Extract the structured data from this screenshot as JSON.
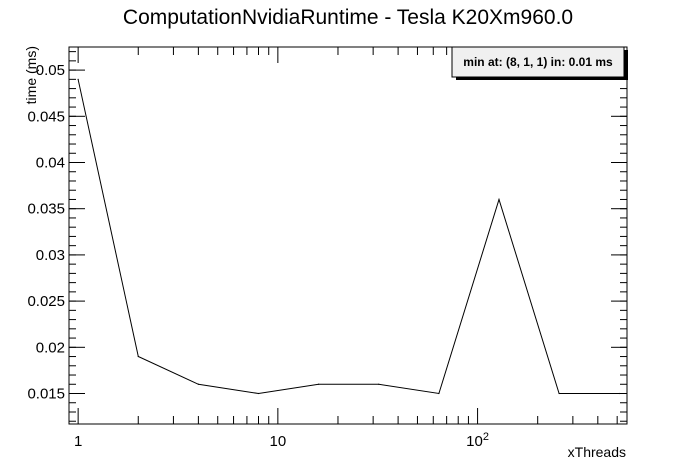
{
  "chart_data": {
    "type": "line",
    "title": "ComputationNvidiaRuntime - Tesla K20Xm960.0",
    "xlabel": "xThreads",
    "ylabel": "time (ms)",
    "xscale": "log",
    "xlim": [
      0.9,
      560
    ],
    "ylim": [
      0.0117,
      0.0525
    ],
    "x": [
      1,
      2,
      4,
      8,
      16,
      32,
      64,
      128,
      256,
      512
    ],
    "series": [
      {
        "values": [
          0.049,
          0.019,
          0.016,
          0.015,
          0.016,
          0.016,
          0.015,
          0.036,
          0.015,
          0.015
        ]
      }
    ],
    "x_tick_labels": [
      {
        "value": 1,
        "label": "1"
      },
      {
        "value": 10,
        "label": "10"
      },
      {
        "value": 100,
        "label": "10",
        "exp": "2"
      }
    ],
    "y_ticks": [
      0.015,
      0.02,
      0.025,
      0.03,
      0.035,
      0.04,
      0.045,
      0.05
    ],
    "y_tick_labels": [
      "0.015",
      "0.02",
      "0.025",
      "0.03",
      "0.035",
      "0.04",
      "0.045",
      "0.05"
    ],
    "annotation": "min at: (8, 1, 1) in: 0.01 ms",
    "grid": false,
    "legend": "none",
    "colors": {
      "line": "#000000",
      "annotation_bg": "#f0f0f0",
      "annotation_border": "#000000"
    }
  }
}
